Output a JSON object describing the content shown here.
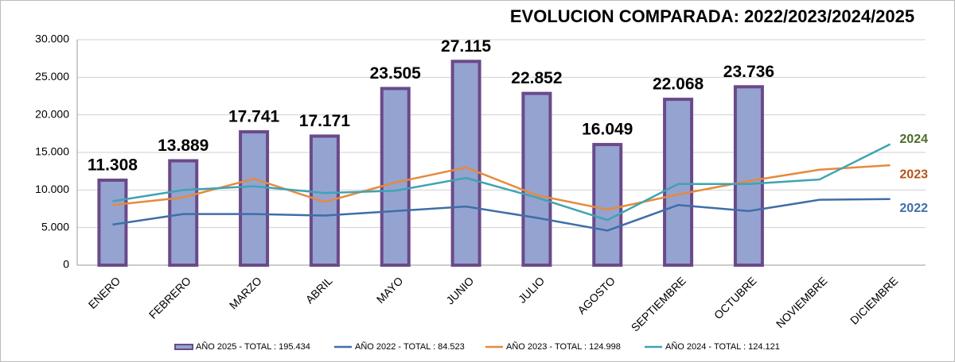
{
  "chart_data": {
    "type": "bar",
    "title": "EVOLUCION COMPARADA: 2022/2023/2024/2025",
    "categories": [
      "ENERO",
      "FEBRERO",
      "MARZO",
      "ABRIL",
      "MAYO",
      "JUNIO",
      "JULIO",
      "AGOSTO",
      "SEPTIEMBRE",
      "OCTUBRE",
      "NOVIEMBRE",
      "DICIEMBRE"
    ],
    "ylim": [
      0,
      30000
    ],
    "yticks": [
      0,
      {
        "value": 5000,
        "label": "5.000"
      },
      {
        "value": 10000,
        "label": "10.000"
      },
      {
        "value": 15000,
        "label": "15.000"
      },
      {
        "value": 20000,
        "label": "20.000"
      },
      {
        "value": 25000,
        "label": "25.000"
      },
      {
        "value": 30000,
        "label": "30.000"
      }
    ],
    "grid": true,
    "series": [
      {
        "name": "AÑO 2025 - TOTAL : 195.434",
        "type": "bar",
        "color": "#95a3d0",
        "edge_color": "#6a4a8a",
        "values": [
          11308,
          13889,
          17741,
          17171,
          23505,
          27115,
          22852,
          16049,
          22068,
          23736,
          null,
          null
        ],
        "value_labels": [
          "11.308",
          "13.889",
          "17.741",
          "17.171",
          "23.505",
          "27.115",
          "22.852",
          "16.049",
          "22.068",
          "23.736",
          null,
          null
        ]
      },
      {
        "name": "AÑO 2022 - TOTAL : 84.523",
        "type": "line",
        "color": "#3f6ea8",
        "label": "2022",
        "label_color": "#3f6ea8",
        "values": [
          5400,
          6800,
          6800,
          6600,
          7200,
          7800,
          6300,
          4600,
          8000,
          7200,
          8700,
          8800
        ]
      },
      {
        "name": "AÑO 2023 - TOTAL : 124.998",
        "type": "line",
        "color": "#e68a3d",
        "label": "2023",
        "label_color": "#b5541a",
        "values": [
          8000,
          9000,
          11500,
          8400,
          11000,
          13000,
          9300,
          7400,
          9400,
          11200,
          12700,
          13300
        ]
      },
      {
        "name": "AÑO 2024 - TOTAL : 124.121",
        "type": "line",
        "color": "#3fa3b3",
        "label": "2024",
        "label_color": "#4e6b2a",
        "values": [
          8500,
          10000,
          10500,
          9600,
          9900,
          11600,
          9000,
          6000,
          10800,
          10800,
          11400,
          16100
        ]
      }
    ]
  }
}
